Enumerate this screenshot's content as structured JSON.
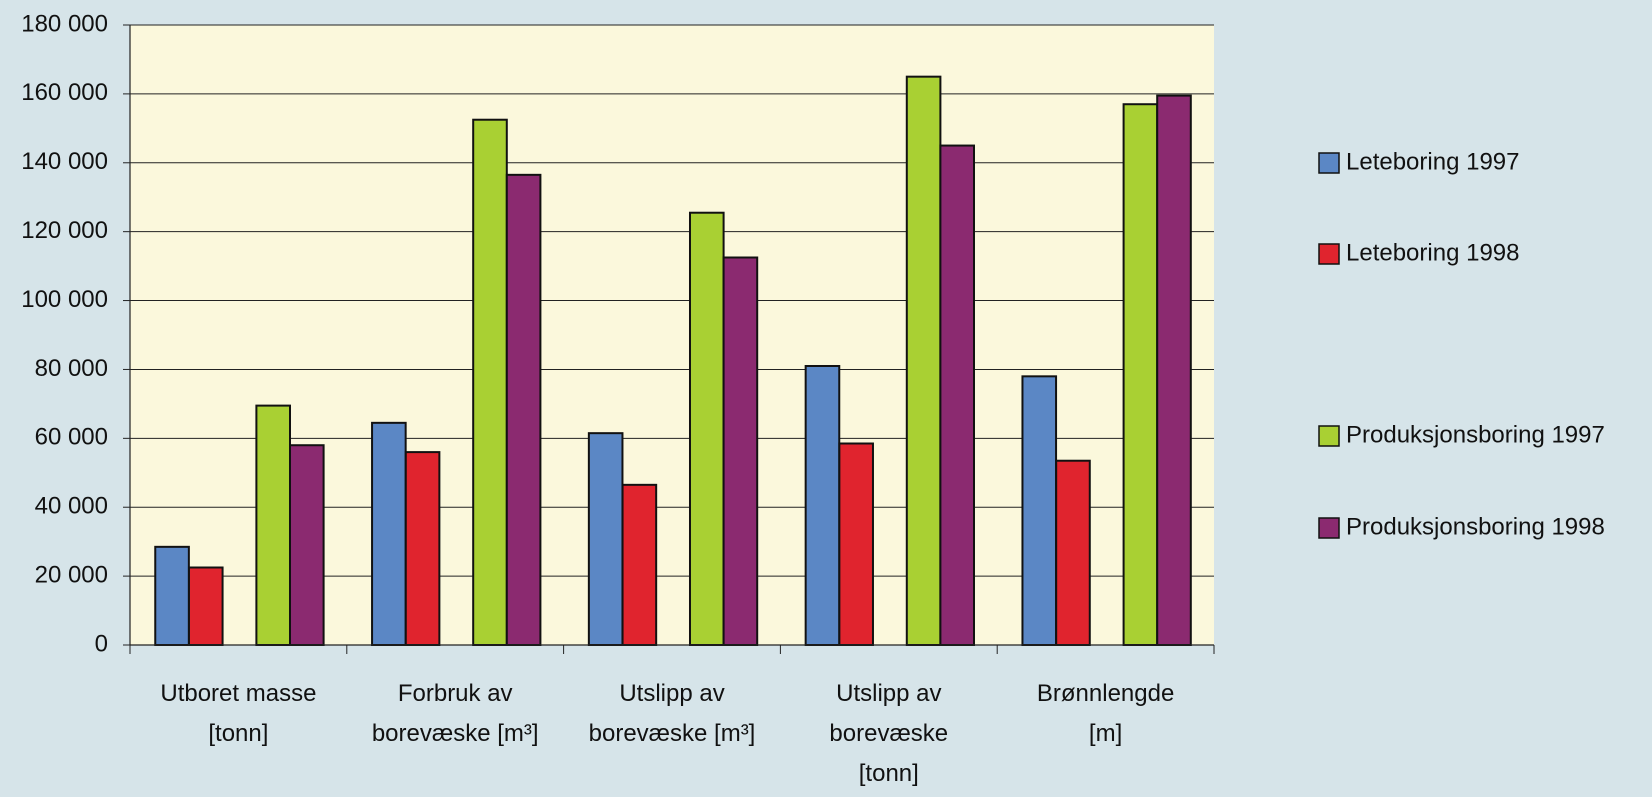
{
  "chart_data": {
    "type": "bar",
    "categories": [
      "Utboret masse\n[tonn]",
      "Forbruk av\nborevæske [m³]",
      "Utslipp av\nborevæske [m³]",
      "Utslipp av\nborevæske\n[tonn]",
      "Brønnlengde\n[m]"
    ],
    "series": [
      {
        "name": "Leteboring 1997",
        "color": "#5b87c5",
        "values": [
          28500,
          64500,
          61500,
          81000,
          78000
        ]
      },
      {
        "name": "Leteboring 1998",
        "color": "#e0242e",
        "values": [
          22500,
          56000,
          46500,
          58500,
          53500
        ]
      },
      {
        "name": "Produksjonsboring 1997",
        "color": "#a9d033",
        "values": [
          69500,
          152500,
          125500,
          165000,
          157000
        ]
      },
      {
        "name": "Produksjonsboring 1998",
        "color": "#8b2a70",
        "values": [
          58000,
          136500,
          112500,
          145000,
          159500
        ]
      }
    ],
    "ylim": [
      0,
      180000
    ],
    "yticks": [
      0,
      {
        "value": 20000,
        "label": "20 000"
      },
      {
        "value": 40000,
        "label": "40 000"
      },
      {
        "value": 60000,
        "label": "60 000"
      },
      {
        "value": 80000,
        "label": "80 000"
      },
      {
        "value": 100000,
        "label": "100 000"
      },
      {
        "value": 120000,
        "label": "120 000"
      },
      {
        "value": 140000,
        "label": "140 000"
      },
      {
        "value": 160000,
        "label": "160 000"
      },
      {
        "value": 180000,
        "label": "180 000"
      }
    ],
    "grid": true,
    "legend": "right"
  }
}
